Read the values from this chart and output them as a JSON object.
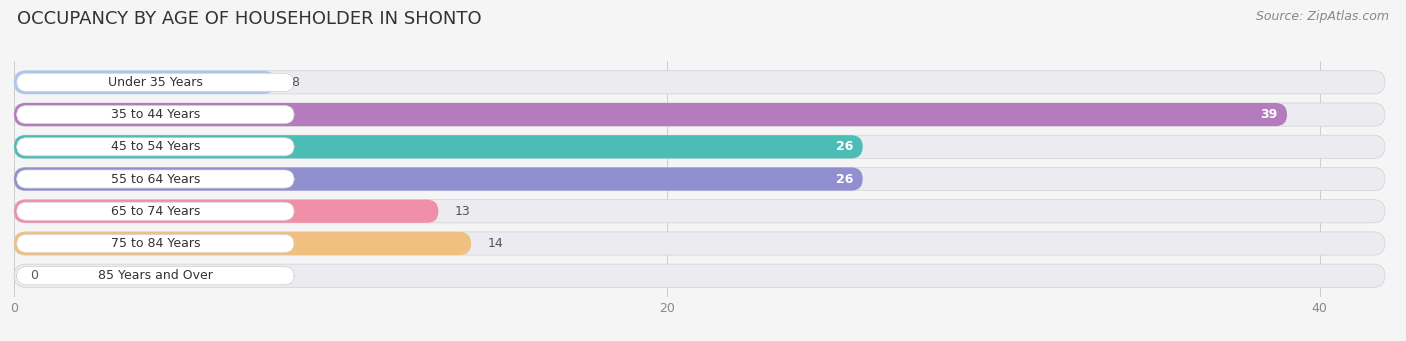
{
  "title": "OCCUPANCY BY AGE OF HOUSEHOLDER IN SHONTO",
  "source": "Source: ZipAtlas.com",
  "categories": [
    "Under 35 Years",
    "35 to 44 Years",
    "45 to 54 Years",
    "55 to 64 Years",
    "65 to 74 Years",
    "75 to 84 Years",
    "85 Years and Over"
  ],
  "values": [
    8,
    39,
    26,
    26,
    13,
    14,
    0
  ],
  "bar_colors": [
    "#a8c8f0",
    "#b57cbd",
    "#4cbdb5",
    "#9090d0",
    "#f090a8",
    "#f0c080",
    "#f0a8a0"
  ],
  "xlim_data": 40,
  "xlim_display": 42,
  "xticks": [
    0,
    20,
    40
  ],
  "bar_bg_color": "#ebebf0",
  "fig_bg_color": "#f5f5f5",
  "title_fontsize": 13,
  "source_fontsize": 9,
  "label_fontsize": 9,
  "value_fontsize": 9,
  "bar_height": 0.72,
  "bar_gap": 0.18,
  "fig_width": 14.06,
  "fig_height": 3.41
}
